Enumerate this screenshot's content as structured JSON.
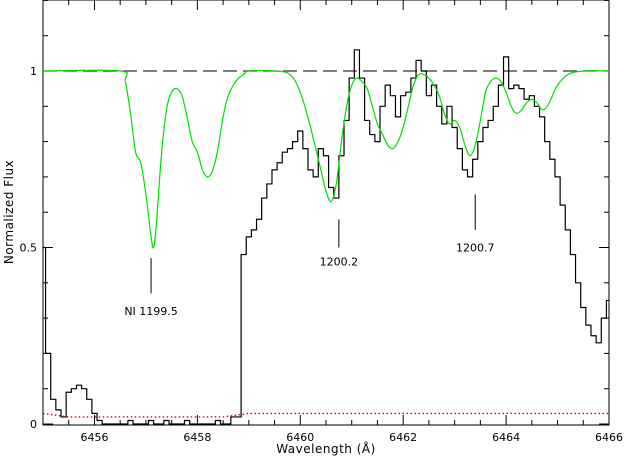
{
  "chart_data": {
    "type": "line",
    "xlabel": "Wavelength (Å)",
    "ylabel": "Normalized Flux",
    "xlim": [
      6455.0,
      6466.0
    ],
    "ylim": [
      0.0,
      1.2
    ],
    "x_ticks": [
      6456,
      6458,
      6460,
      6462,
      6464,
      6466
    ],
    "x_tick_labels": [
      "6456",
      "6458",
      "6460",
      "6462",
      "6464",
      "6466"
    ],
    "y_ticks": [
      0,
      0.5,
      1
    ],
    "y_tick_labels": [
      "0",
      "0.5",
      "1"
    ],
    "grid": false,
    "continuum": 1.0,
    "colors": {
      "data": "#000000",
      "model": "#00dd00",
      "error": "#dd0000",
      "continuum": "#333333"
    },
    "series": [
      {
        "style": "step",
        "color": "#000000",
        "x": [
          6455.0,
          6455.1,
          6455.2,
          6455.3,
          6455.4,
          6455.5,
          6455.6,
          6455.7,
          6455.8,
          6455.9,
          6456.0,
          6456.1,
          6456.2,
          6456.3,
          6456.4,
          6456.5,
          6456.6,
          6456.7,
          6456.8,
          6456.9,
          6457.0,
          6457.1,
          6457.2,
          6457.3,
          6457.4,
          6457.5,
          6457.6,
          6457.7,
          6457.8,
          6457.9,
          6458.0,
          6458.1,
          6458.2,
          6458.3,
          6458.4,
          6458.5,
          6458.6,
          6458.7,
          6458.8,
          6458.9,
          6459.0,
          6459.1,
          6459.2,
          6459.3,
          6459.4,
          6459.5,
          6459.6,
          6459.7,
          6459.8,
          6459.9,
          6460.0,
          6460.1,
          6460.2,
          6460.3,
          6460.4,
          6460.5,
          6460.6,
          6460.7,
          6460.8,
          6460.9,
          6461.0,
          6461.1,
          6461.2,
          6461.3,
          6461.4,
          6461.5,
          6461.6,
          6461.7,
          6461.8,
          6461.9,
          6462.0,
          6462.1,
          6462.2,
          6462.3,
          6462.4,
          6462.5,
          6462.6,
          6462.7,
          6462.8,
          6462.9,
          6463.0,
          6463.1,
          6463.2,
          6463.3,
          6463.4,
          6463.5,
          6463.6,
          6463.7,
          6463.8,
          6463.9,
          6464.0,
          6464.1,
          6464.2,
          6464.3,
          6464.4,
          6464.5,
          6464.6,
          6464.7,
          6464.8,
          6464.9,
          6465.0,
          6465.1,
          6465.2,
          6465.3,
          6465.4,
          6465.5,
          6465.6,
          6465.7,
          6465.8,
          6465.9,
          6466.0
        ],
        "y": [
          0.5,
          0.2,
          0.07,
          0.04,
          0.02,
          0.09,
          0.1,
          0.11,
          0.1,
          0.07,
          0.03,
          0.01,
          0.0,
          0.0,
          0.0,
          0.0,
          0.0,
          0.01,
          0.0,
          0.0,
          0.0,
          0.01,
          0.0,
          0.0,
          0.01,
          0.0,
          0.0,
          0.0,
          0.01,
          0.0,
          0.0,
          0.0,
          0.0,
          0.0,
          0.01,
          0.0,
          0.0,
          0.02,
          0.02,
          0.48,
          0.53,
          0.55,
          0.58,
          0.64,
          0.68,
          0.72,
          0.74,
          0.77,
          0.78,
          0.8,
          0.83,
          0.78,
          0.72,
          0.7,
          0.78,
          0.76,
          0.67,
          0.64,
          0.76,
          0.86,
          0.98,
          1.06,
          0.98,
          0.86,
          0.82,
          0.8,
          0.9,
          0.96,
          0.93,
          0.87,
          0.93,
          0.94,
          0.98,
          1.03,
          1.0,
          0.93,
          0.96,
          0.9,
          0.85,
          0.9,
          0.84,
          0.78,
          0.72,
          0.7,
          0.75,
          0.8,
          0.84,
          0.86,
          0.9,
          0.96,
          1.04,
          0.95,
          0.96,
          0.95,
          0.92,
          0.93,
          0.9,
          0.87,
          0.8,
          0.75,
          0.7,
          0.62,
          0.55,
          0.48,
          0.4,
          0.33,
          0.28,
          0.25,
          0.23,
          0.3,
          0.35
        ]
      },
      {
        "style": "smooth",
        "color": "#00dd00",
        "x": [
          6455.0,
          6456.5,
          6456.6,
          6456.7,
          6456.8,
          6456.9,
          6457.0,
          6457.1,
          6457.15,
          6457.2,
          6457.3,
          6457.4,
          6457.5,
          6457.6,
          6457.7,
          6457.8,
          6457.9,
          6458.0,
          6458.1,
          6458.2,
          6458.3,
          6458.4,
          6458.5,
          6458.6,
          6458.7,
          6458.8,
          6458.9,
          6459.0,
          6459.5,
          6459.8,
          6460.0,
          6460.2,
          6460.4,
          6460.5,
          6460.6,
          6460.7,
          6460.8,
          6460.9,
          6461.0,
          6461.1,
          6461.2,
          6461.3,
          6461.4,
          6461.5,
          6461.6,
          6461.7,
          6461.8,
          6461.9,
          6462.0,
          6462.1,
          6462.2,
          6462.3,
          6462.4,
          6462.5,
          6462.6,
          6462.7,
          6462.8,
          6462.9,
          6463.0,
          6463.1,
          6463.2,
          6463.3,
          6463.4,
          6463.5,
          6463.6,
          6463.7,
          6463.8,
          6463.9,
          6464.0,
          6464.1,
          6464.2,
          6464.3,
          6464.4,
          6464.5,
          6464.6,
          6464.7,
          6464.8,
          6464.9,
          6465.0,
          6465.2,
          6465.5,
          6466.0
        ],
        "y": [
          1.0,
          1.0,
          0.97,
          0.88,
          0.77,
          0.74,
          0.65,
          0.53,
          0.5,
          0.56,
          0.76,
          0.89,
          0.94,
          0.95,
          0.93,
          0.87,
          0.8,
          0.77,
          0.72,
          0.7,
          0.72,
          0.78,
          0.87,
          0.93,
          0.96,
          0.98,
          0.99,
          1.0,
          1.0,
          0.99,
          0.94,
          0.84,
          0.72,
          0.66,
          0.63,
          0.68,
          0.8,
          0.9,
          0.96,
          0.98,
          0.97,
          0.95,
          0.9,
          0.85,
          0.82,
          0.79,
          0.78,
          0.8,
          0.84,
          0.9,
          0.96,
          0.99,
          0.99,
          0.98,
          0.96,
          0.93,
          0.88,
          0.85,
          0.86,
          0.84,
          0.79,
          0.76,
          0.79,
          0.86,
          0.94,
          0.97,
          0.98,
          0.97,
          0.94,
          0.9,
          0.88,
          0.89,
          0.91,
          0.92,
          0.91,
          0.89,
          0.9,
          0.93,
          0.96,
          0.99,
          1.0,
          1.0
        ]
      },
      {
        "style": "dotted",
        "color": "#dd0000",
        "x": [
          6455.0,
          6455.5,
          6456.0,
          6456.5,
          6457.0,
          6457.5,
          6458.0,
          6458.5,
          6459.0,
          6459.5,
          6460.0,
          6460.5,
          6461.0,
          6461.5,
          6462.0,
          6462.5,
          6463.0,
          6463.5,
          6464.0,
          6464.5,
          6465.0,
          6465.5,
          6466.0
        ],
        "y": [
          0.03,
          0.02,
          0.02,
          0.02,
          0.02,
          0.02,
          0.02,
          0.02,
          0.03,
          0.03,
          0.03,
          0.03,
          0.03,
          0.03,
          0.03,
          0.03,
          0.03,
          0.03,
          0.03,
          0.03,
          0.03,
          0.03,
          0.03
        ]
      }
    ],
    "annotations": [
      {
        "text": "NI 1199.5",
        "x": 6457.1,
        "tick_y": [
          0.47,
          0.37
        ],
        "text_y": 0.32
      },
      {
        "text": "1200.2",
        "x": 6460.75,
        "tick_y": [
          0.58,
          0.5
        ],
        "text_y": 0.46
      },
      {
        "text": "1200.7",
        "x": 6463.4,
        "tick_y": [
          0.65,
          0.55
        ],
        "text_y": 0.5
      }
    ]
  }
}
